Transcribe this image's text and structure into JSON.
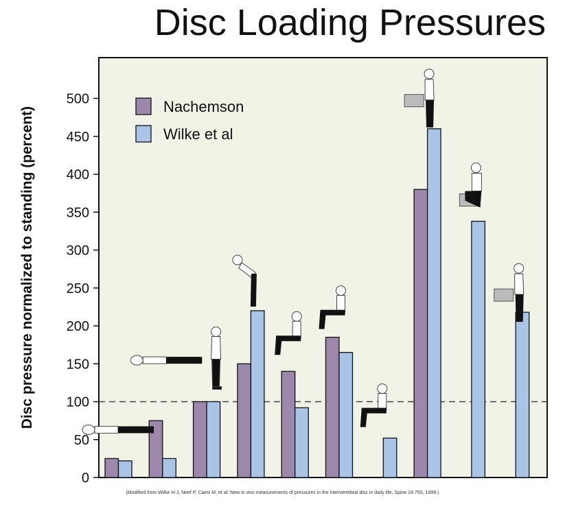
{
  "chart_data": {
    "type": "bar",
    "title": "Disc Loading Pressures",
    "ylabel": "Disc pressure normalized to standing (percent)",
    "xlabel": "",
    "ylim": [
      0,
      530
    ],
    "yticks": [
      0,
      50,
      100,
      150,
      200,
      250,
      300,
      350,
      400,
      450,
      500
    ],
    "reference_line": 100,
    "categories": [
      "lying supine",
      "lying on side",
      "standing",
      "standing bent forward",
      "sitting upright",
      "sitting bent forward",
      "sitting slouched",
      "lifting with round back",
      "lifting with bent knees",
      "holding weight close to body"
    ],
    "series": [
      {
        "name": "Nachemson",
        "color": "#9b88ab",
        "values": [
          25,
          75,
          100,
          150,
          140,
          185,
          null,
          380,
          null,
          null
        ]
      },
      {
        "name": "Wilke et al",
        "color": "#a9c4e6",
        "values": [
          22,
          25,
          100,
          220,
          92,
          165,
          52,
          460,
          338,
          218
        ]
      }
    ]
  },
  "caption": "(Modified from Wilke H-J, Neef P, Caimi M, et al: New in vivo measurements of pressures in the intervertebral disc in daily life, Spine 24:755, 1999.)"
}
